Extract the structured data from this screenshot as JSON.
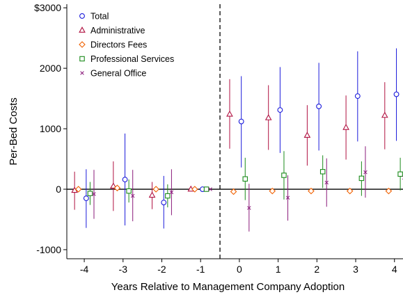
{
  "chart_data": {
    "type": "scatter",
    "xlabel": "Years Relative to Management Company Adoption",
    "ylabel": "Per-Bed Costs",
    "xlim": [
      -4.45,
      4.22
    ],
    "ylim": [
      -1150,
      3060
    ],
    "x_ticks": [
      -4,
      -3,
      -2,
      -1,
      0,
      1,
      2,
      3,
      4
    ],
    "x_tick_labels": [
      "-4",
      "-3",
      "-2",
      "-1",
      "0",
      "1",
      "2",
      "3",
      "4"
    ],
    "y_ticks": [
      -1000,
      0,
      1000,
      2000,
      3000
    ],
    "y_tick_labels": [
      "-1000",
      "0",
      "1000",
      "2000",
      "$3000"
    ],
    "zero_line": true,
    "reference_line_x": -0.5,
    "grid": false,
    "legend_position": "top-left",
    "series": [
      {
        "name": "Total",
        "marker": "circle",
        "color": "#1a1adb",
        "offset": 0.05,
        "points": [
          {
            "x": -4,
            "y": -150,
            "lo": -640,
            "hi": 330
          },
          {
            "x": -3,
            "y": 160,
            "lo": -600,
            "hi": 920
          },
          {
            "x": -2,
            "y": -220,
            "lo": -650,
            "hi": 220
          },
          {
            "x": -1,
            "y": 0,
            "lo": 0,
            "hi": 0
          },
          {
            "x": 0,
            "y": 1120,
            "lo": 360,
            "hi": 1870
          },
          {
            "x": 1,
            "y": 1310,
            "lo": 600,
            "hi": 2020
          },
          {
            "x": 2,
            "y": 1370,
            "lo": 640,
            "hi": 2090
          },
          {
            "x": 3,
            "y": 1540,
            "lo": 790,
            "hi": 2280
          },
          {
            "x": 4,
            "y": 1570,
            "lo": 800,
            "hi": 2330
          }
        ]
      },
      {
        "name": "Administrative",
        "marker": "triangle",
        "color": "#b01040",
        "offset": -0.25,
        "points": [
          {
            "x": -4,
            "y": -20,
            "lo": -340,
            "hi": 290
          },
          {
            "x": -3,
            "y": 50,
            "lo": -360,
            "hi": 460
          },
          {
            "x": -2,
            "y": -100,
            "lo": -330,
            "hi": 120
          },
          {
            "x": -1,
            "y": 0,
            "lo": 0,
            "hi": 0
          },
          {
            "x": 0,
            "y": 1240,
            "lo": 670,
            "hi": 1820
          },
          {
            "x": 1,
            "y": 1180,
            "lo": 650,
            "hi": 1720
          },
          {
            "x": 2,
            "y": 890,
            "lo": 390,
            "hi": 1390
          },
          {
            "x": 3,
            "y": 1020,
            "lo": 490,
            "hi": 1550
          },
          {
            "x": 4,
            "y": 1220,
            "lo": 660,
            "hi": 1770
          }
        ]
      },
      {
        "name": "Directors Fees",
        "marker": "diamond",
        "color": "#f06000",
        "offset": -0.15,
        "points": [
          {
            "x": -4,
            "y": 0,
            "lo": -20,
            "hi": 20
          },
          {
            "x": -3,
            "y": 20,
            "lo": -10,
            "hi": 40
          },
          {
            "x": -2,
            "y": 0,
            "lo": -20,
            "hi": 20
          },
          {
            "x": -1,
            "y": 0,
            "lo": 0,
            "hi": 0
          },
          {
            "x": 0,
            "y": -40,
            "lo": -60,
            "hi": -20
          },
          {
            "x": 1,
            "y": -30,
            "lo": -50,
            "hi": -10
          },
          {
            "x": 2,
            "y": -30,
            "lo": -50,
            "hi": -10
          },
          {
            "x": 3,
            "y": -30,
            "lo": -50,
            "hi": -10
          },
          {
            "x": 4,
            "y": -30,
            "lo": -50,
            "hi": -10
          }
        ]
      },
      {
        "name": "Professional Services",
        "marker": "square",
        "color": "#1a8a1a",
        "offset": 0.15,
        "points": [
          {
            "x": -4,
            "y": -70,
            "lo": -260,
            "hi": 120
          },
          {
            "x": -3,
            "y": -30,
            "lo": -220,
            "hi": 160
          },
          {
            "x": -2,
            "y": -110,
            "lo": -300,
            "hi": 80
          },
          {
            "x": -1,
            "y": 0,
            "lo": 0,
            "hi": 0
          },
          {
            "x": 0,
            "y": 170,
            "lo": -180,
            "hi": 520
          },
          {
            "x": 1,
            "y": 230,
            "lo": -170,
            "hi": 630
          },
          {
            "x": 2,
            "y": 290,
            "lo": 20,
            "hi": 560
          },
          {
            "x": 3,
            "y": 180,
            "lo": -110,
            "hi": 460
          },
          {
            "x": 4,
            "y": 250,
            "lo": -20,
            "hi": 520
          }
        ]
      },
      {
        "name": "General Office",
        "marker": "x",
        "color": "#8a1a7a",
        "offset": 0.25,
        "points": [
          {
            "x": -4,
            "y": -80,
            "lo": -490,
            "hi": 320
          },
          {
            "x": -3,
            "y": -110,
            "lo": -530,
            "hi": 320
          },
          {
            "x": -2,
            "y": -50,
            "lo": -430,
            "hi": 330
          },
          {
            "x": -1,
            "y": 0,
            "lo": 0,
            "hi": 0
          },
          {
            "x": 0,
            "y": -310,
            "lo": -700,
            "hi": 90
          },
          {
            "x": 1,
            "y": -140,
            "lo": -520,
            "hi": 230
          },
          {
            "x": 2,
            "y": 110,
            "lo": -290,
            "hi": 510
          },
          {
            "x": 3,
            "y": 280,
            "lo": -140,
            "hi": 710
          },
          {
            "x": 4,
            "y": 190,
            "lo": -230,
            "hi": 620
          }
        ]
      }
    ]
  }
}
